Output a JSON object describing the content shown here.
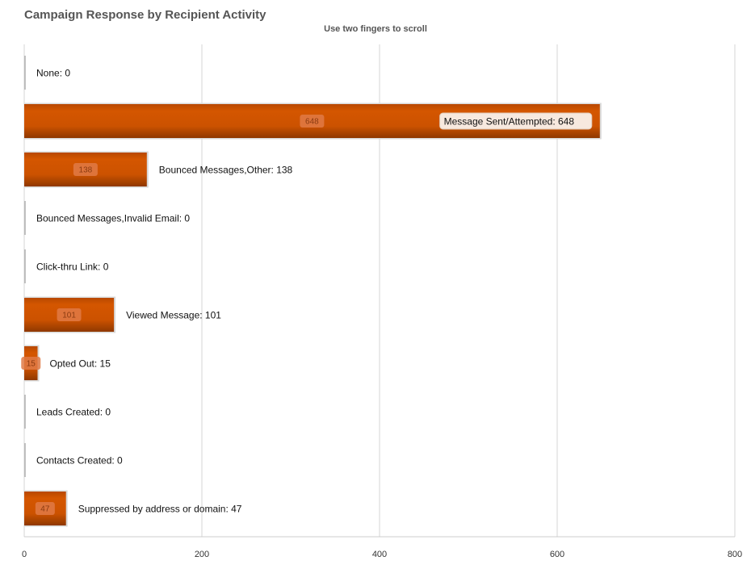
{
  "chart_data": {
    "type": "bar",
    "orientation": "horizontal",
    "title": "Campaign Response by Recipient Activity",
    "subtitle": "Use two fingers to scroll",
    "categories": [
      "None",
      "Message Sent/Attempted",
      "Bounced Messages,Other",
      "Bounced Messages,Invalid Email",
      "Click-thru Link",
      "Viewed Message",
      "Opted Out",
      "Leads Created",
      "Contacts Created",
      "Suppressed by address or domain"
    ],
    "values": [
      0,
      648,
      138,
      0,
      0,
      101,
      15,
      0,
      0,
      47
    ],
    "xlim": [
      0,
      800
    ],
    "xticks": [
      0,
      200,
      400,
      600,
      800
    ],
    "grid": true,
    "bar_color": "#cc5200",
    "highlighted_category": "Message Sent/Attempted"
  }
}
